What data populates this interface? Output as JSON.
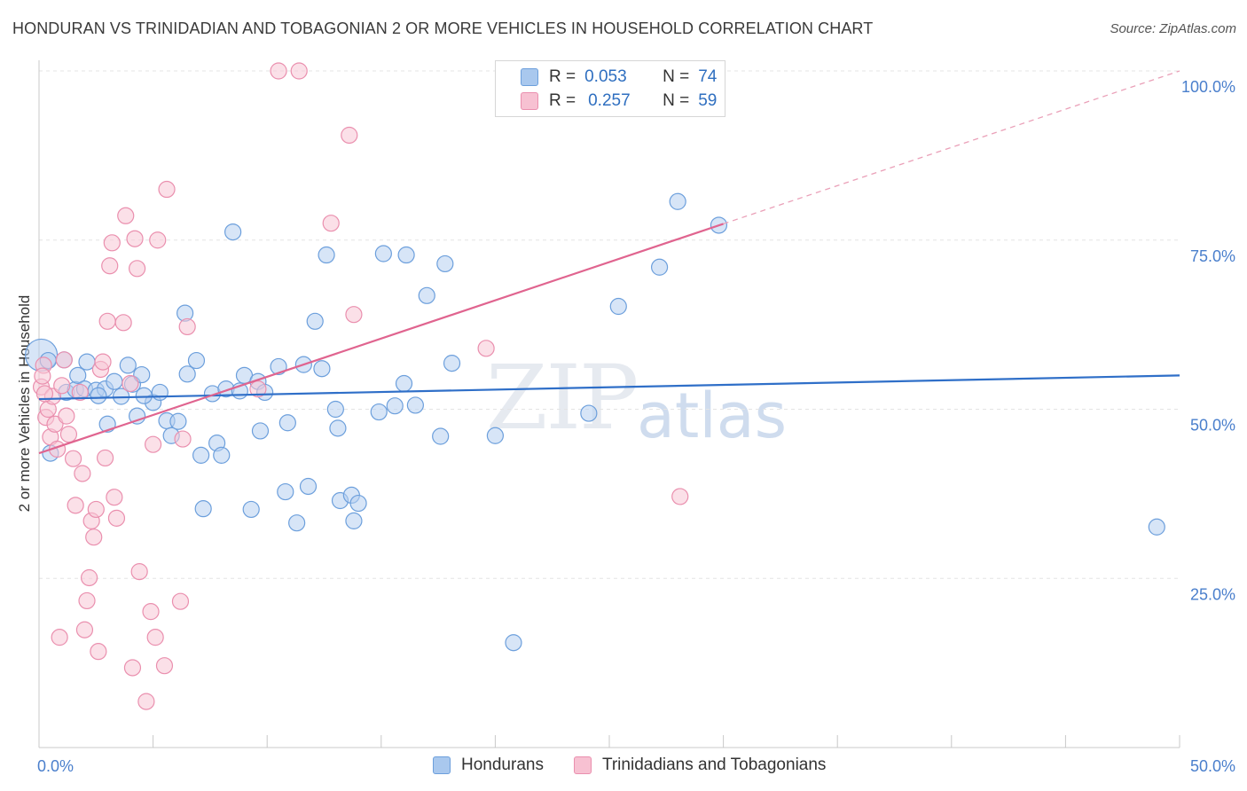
{
  "header": {
    "title": "HONDURAN VS TRINIDADIAN AND TOBAGONIAN 2 OR MORE VEHICLES IN HOUSEHOLD CORRELATION CHART",
    "source": "Source: ZipAtlas.com"
  },
  "watermark": {
    "zip": "ZIP",
    "atlas": "atlas"
  },
  "legend": {
    "rows": [
      {
        "r_label": "R =",
        "r_value": "0.053",
        "n_label": "N =",
        "n_value": "74",
        "color": "#a9c8ee",
        "border": "#6c9fdc"
      },
      {
        "r_label": "R =",
        "r_value": "0.257",
        "n_label": "N =",
        "n_value": "59",
        "color": "#f7c1d2",
        "border": "#ea8fae"
      }
    ]
  },
  "bottom_legend": {
    "series1": "Hondurans",
    "series2": "Trinidadians and Tobagonians"
  },
  "chart_data": {
    "type": "scatter",
    "title": "HONDURAN VS TRINIDADIAN AND TOBAGONIAN 2 OR MORE VEHICLES IN HOUSEHOLD CORRELATION CHART",
    "ylabel": "2 or more Vehicles in Household",
    "xlabel": "",
    "xlim": [
      0,
      50
    ],
    "ylim": [
      0,
      100
    ],
    "x_tick_labels": [
      "0.0%",
      "50.0%"
    ],
    "y_tick_labels": [
      {
        "v": 100,
        "label": "100.0%"
      },
      {
        "v": 75,
        "label": "75.0%"
      },
      {
        "v": 50,
        "label": "50.0%"
      },
      {
        "v": 25,
        "label": "25.0%"
      }
    ],
    "grid": true,
    "series": [
      {
        "name": "Hondurans",
        "color": "#6c9fdc",
        "fill": "#b7d0f0",
        "trend": [
          [
            0,
            51.5
          ],
          [
            50,
            55.0
          ]
        ],
        "points": [
          [
            0.1,
            58.0
          ],
          [
            0.4,
            57.2
          ],
          [
            1.1,
            57.3
          ],
          [
            1.2,
            52.5
          ],
          [
            1.6,
            52.9
          ],
          [
            1.7,
            55.0
          ],
          [
            2.0,
            53.0
          ],
          [
            2.1,
            57.0
          ],
          [
            2.5,
            52.8
          ],
          [
            2.9,
            53.0
          ],
          [
            3.0,
            47.8
          ],
          [
            3.3,
            54.1
          ],
          [
            3.6,
            51.9
          ],
          [
            3.9,
            56.5
          ],
          [
            4.1,
            53.7
          ],
          [
            4.3,
            49.0
          ],
          [
            4.5,
            55.1
          ],
          [
            5.0,
            51.0
          ],
          [
            5.3,
            52.5
          ],
          [
            5.6,
            48.3
          ],
          [
            5.8,
            46.1
          ],
          [
            6.1,
            48.2
          ],
          [
            6.4,
            64.2
          ],
          [
            6.5,
            55.2
          ],
          [
            6.9,
            57.2
          ],
          [
            7.1,
            43.2
          ],
          [
            7.2,
            35.3
          ],
          [
            7.6,
            52.3
          ],
          [
            7.8,
            45.0
          ],
          [
            8.0,
            43.2
          ],
          [
            8.2,
            53.0
          ],
          [
            8.5,
            76.2
          ],
          [
            8.8,
            52.7
          ],
          [
            9.0,
            55.0
          ],
          [
            9.3,
            35.2
          ],
          [
            9.6,
            54.1
          ],
          [
            9.7,
            46.8
          ],
          [
            9.9,
            52.5
          ],
          [
            10.5,
            56.3
          ],
          [
            10.8,
            37.8
          ],
          [
            10.9,
            48.0
          ],
          [
            11.3,
            33.2
          ],
          [
            11.6,
            56.6
          ],
          [
            11.8,
            38.6
          ],
          [
            12.1,
            63.0
          ],
          [
            12.4,
            56.0
          ],
          [
            12.6,
            72.8
          ],
          [
            13.0,
            50.0
          ],
          [
            13.1,
            47.2
          ],
          [
            13.2,
            36.5
          ],
          [
            13.7,
            37.3
          ],
          [
            13.8,
            33.5
          ],
          [
            14.0,
            36.1
          ],
          [
            14.9,
            49.6
          ],
          [
            15.1,
            73.0
          ],
          [
            15.6,
            50.5
          ],
          [
            16.0,
            53.8
          ],
          [
            16.1,
            72.8
          ],
          [
            16.5,
            50.6
          ],
          [
            17.0,
            66.8
          ],
          [
            17.6,
            46.0
          ],
          [
            17.8,
            71.5
          ],
          [
            18.1,
            56.8
          ],
          [
            20.0,
            46.1
          ],
          [
            20.8,
            15.5
          ],
          [
            24.1,
            49.4
          ],
          [
            25.4,
            65.2
          ],
          [
            27.2,
            71.0
          ],
          [
            28.0,
            80.7
          ],
          [
            29.8,
            77.2
          ],
          [
            49.0,
            32.6
          ],
          [
            0.5,
            43.5
          ],
          [
            2.6,
            52.0
          ],
          [
            4.6,
            52.0
          ]
        ]
      },
      {
        "name": "Trinidadians and Tobagonians",
        "color": "#ea8fae",
        "fill": "#f7c6d6",
        "trend": [
          [
            0,
            43.5
          ],
          [
            30,
            77.4
          ]
        ],
        "trend_extension": [
          [
            30,
            77.4
          ],
          [
            50,
            100
          ]
        ],
        "points": [
          [
            0.1,
            53.3
          ],
          [
            0.2,
            56.5
          ],
          [
            0.3,
            48.8
          ],
          [
            0.4,
            50.0
          ],
          [
            0.5,
            45.9
          ],
          [
            0.6,
            51.9
          ],
          [
            0.7,
            47.8
          ],
          [
            0.8,
            44.1
          ],
          [
            0.9,
            16.3
          ],
          [
            1.0,
            53.5
          ],
          [
            1.1,
            57.3
          ],
          [
            1.2,
            49.0
          ],
          [
            1.3,
            46.3
          ],
          [
            1.5,
            42.7
          ],
          [
            1.6,
            35.8
          ],
          [
            1.8,
            52.5
          ],
          [
            1.9,
            40.5
          ],
          [
            2.0,
            17.4
          ],
          [
            2.1,
            21.7
          ],
          [
            2.2,
            25.1
          ],
          [
            2.3,
            33.5
          ],
          [
            2.4,
            31.1
          ],
          [
            2.5,
            35.2
          ],
          [
            2.6,
            14.2
          ],
          [
            2.7,
            55.9
          ],
          [
            2.8,
            57.0
          ],
          [
            2.9,
            42.8
          ],
          [
            3.0,
            63.0
          ],
          [
            3.1,
            71.2
          ],
          [
            3.2,
            74.6
          ],
          [
            3.3,
            37.0
          ],
          [
            3.4,
            33.9
          ],
          [
            3.7,
            62.8
          ],
          [
            3.8,
            78.6
          ],
          [
            4.0,
            53.8
          ],
          [
            4.1,
            11.8
          ],
          [
            4.2,
            75.2
          ],
          [
            4.3,
            70.8
          ],
          [
            4.4,
            26.0
          ],
          [
            4.7,
            6.8
          ],
          [
            4.9,
            20.1
          ],
          [
            5.0,
            44.8
          ],
          [
            5.1,
            16.3
          ],
          [
            5.2,
            75.0
          ],
          [
            5.5,
            12.1
          ],
          [
            5.6,
            82.5
          ],
          [
            6.2,
            21.6
          ],
          [
            6.3,
            45.6
          ],
          [
            6.5,
            62.2
          ],
          [
            9.6,
            53.0
          ],
          [
            10.5,
            100.0
          ],
          [
            11.4,
            100.0
          ],
          [
            12.8,
            77.5
          ],
          [
            13.6,
            90.5
          ],
          [
            13.8,
            64.0
          ],
          [
            19.6,
            59.0
          ],
          [
            28.1,
            37.1
          ],
          [
            0.15,
            54.9
          ],
          [
            0.25,
            52.3
          ]
        ]
      }
    ]
  }
}
